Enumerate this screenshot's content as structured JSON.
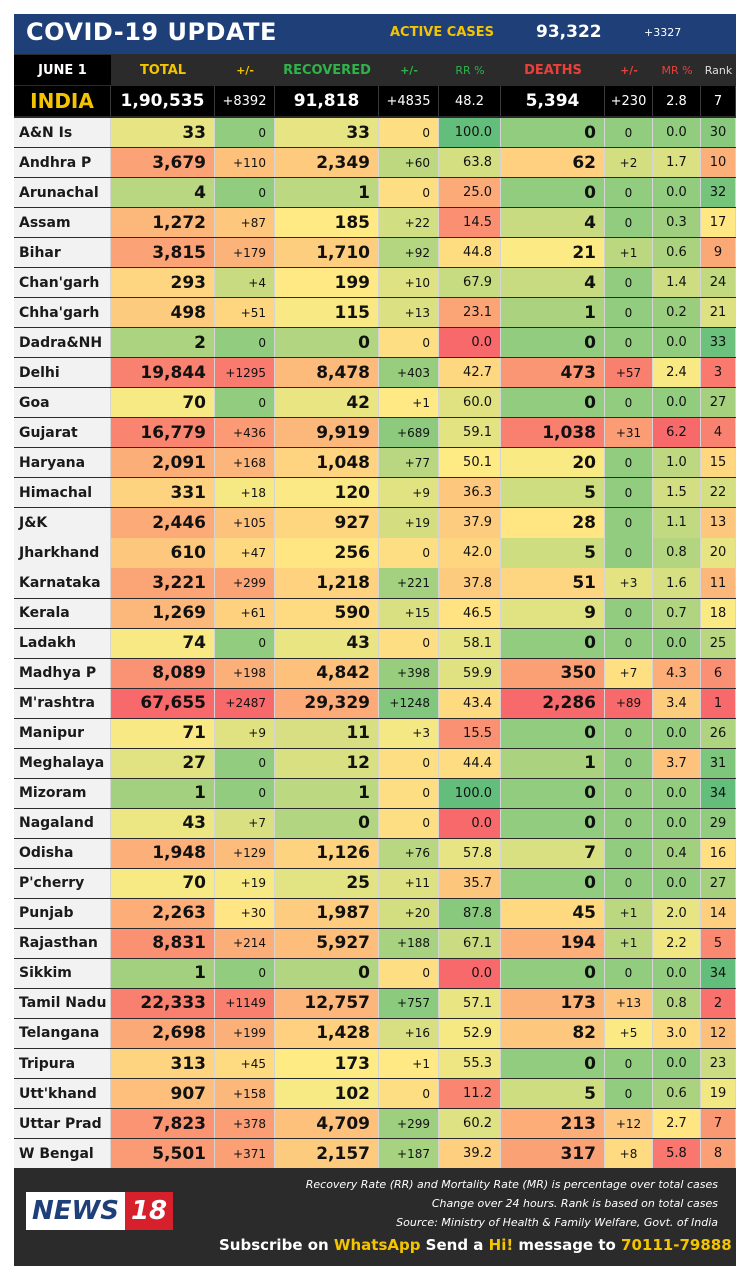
{
  "header": {
    "title": "COVID-19 UPDATE",
    "active_label": "ACTIVE CASES",
    "active_value": "93,322",
    "active_delta": "+3327"
  },
  "columns": [
    "JUNE 1",
    "TOTAL",
    "+/-",
    "RECOVERED",
    "+/-",
    "RR %",
    "DEATHS",
    "+/-",
    "MR %",
    "Rank"
  ],
  "india": [
    "INDIA",
    "1,90,535",
    "+8392",
    "91,818",
    "+4835",
    "48.2",
    "5,394",
    "+230",
    "2.8",
    "7"
  ],
  "chart_data": {
    "type": "table",
    "title": "COVID-19 UPDATE",
    "columns": [
      "JUNE 1",
      "TOTAL",
      "+/-",
      "RECOVERED",
      "+/-",
      "RR %",
      "DEATHS",
      "+/-",
      "MR %",
      "Rank"
    ],
    "rows": [
      [
        "A&N Is",
        "33",
        "0",
        "33",
        "0",
        "100.0",
        "0",
        "0",
        "0.0",
        "30"
      ],
      [
        "Andhra P",
        "3,679",
        "+110",
        "2,349",
        "+60",
        "63.8",
        "62",
        "+2",
        "1.7",
        "10"
      ],
      [
        "Arunachal",
        "4",
        "0",
        "1",
        "0",
        "25.0",
        "0",
        "0",
        "0.0",
        "32"
      ],
      [
        "Assam",
        "1,272",
        "+87",
        "185",
        "+22",
        "14.5",
        "4",
        "0",
        "0.3",
        "17"
      ],
      [
        "Bihar",
        "3,815",
        "+179",
        "1,710",
        "+92",
        "44.8",
        "21",
        "+1",
        "0.6",
        "9"
      ],
      [
        "Chan'garh",
        "293",
        "+4",
        "199",
        "+10",
        "67.9",
        "4",
        "0",
        "1.4",
        "24"
      ],
      [
        "Chha'garh",
        "498",
        "+51",
        "115",
        "+13",
        "23.1",
        "1",
        "0",
        "0.2",
        "21"
      ],
      [
        "Dadra&NH",
        "2",
        "0",
        "0",
        "0",
        "0.0",
        "0",
        "0",
        "0.0",
        "33"
      ],
      [
        "Delhi",
        "19,844",
        "+1295",
        "8,478",
        "+403",
        "42.7",
        "473",
        "+57",
        "2.4",
        "3"
      ],
      [
        "Goa",
        "70",
        "0",
        "42",
        "+1",
        "60.0",
        "0",
        "0",
        "0.0",
        "27"
      ],
      [
        "Gujarat",
        "16,779",
        "+436",
        "9,919",
        "+689",
        "59.1",
        "1,038",
        "+31",
        "6.2",
        "4"
      ],
      [
        "Haryana",
        "2,091",
        "+168",
        "1,048",
        "+77",
        "50.1",
        "20",
        "0",
        "1.0",
        "15"
      ],
      [
        "Himachal",
        "331",
        "+18",
        "120",
        "+9",
        "36.3",
        "5",
        "0",
        "1.5",
        "22"
      ],
      [
        "J&K",
        "2,446",
        "+105",
        "927",
        "+19",
        "37.9",
        "28",
        "0",
        "1.1",
        "13"
      ],
      [
        "Jharkhand",
        "610",
        "+47",
        "256",
        "0",
        "42.0",
        "5",
        "0",
        "0.8",
        "20"
      ],
      [
        "Karnataka",
        "3,221",
        "+299",
        "1,218",
        "+221",
        "37.8",
        "51",
        "+3",
        "1.6",
        "11"
      ],
      [
        "Kerala",
        "1,269",
        "+61",
        "590",
        "+15",
        "46.5",
        "9",
        "0",
        "0.7",
        "18"
      ],
      [
        "Ladakh",
        "74",
        "0",
        "43",
        "0",
        "58.1",
        "0",
        "0",
        "0.0",
        "25"
      ],
      [
        "Madhya P",
        "8,089",
        "+198",
        "4,842",
        "+398",
        "59.9",
        "350",
        "+7",
        "4.3",
        "6"
      ],
      [
        "M'rashtra",
        "67,655",
        "+2487",
        "29,329",
        "+1248",
        "43.4",
        "2,286",
        "+89",
        "3.4",
        "1"
      ],
      [
        "Manipur",
        "71",
        "+9",
        "11",
        "+3",
        "15.5",
        "0",
        "0",
        "0.0",
        "26"
      ],
      [
        "Meghalaya",
        "27",
        "0",
        "12",
        "0",
        "44.4",
        "1",
        "0",
        "3.7",
        "31"
      ],
      [
        "Mizoram",
        "1",
        "0",
        "1",
        "0",
        "100.0",
        "0",
        "0",
        "0.0",
        "34"
      ],
      [
        "Nagaland",
        "43",
        "+7",
        "0",
        "0",
        "0.0",
        "0",
        "0",
        "0.0",
        "29"
      ],
      [
        "Odisha",
        "1,948",
        "+129",
        "1,126",
        "+76",
        "57.8",
        "7",
        "0",
        "0.4",
        "16"
      ],
      [
        "P'cherry",
        "70",
        "+19",
        "25",
        "+11",
        "35.7",
        "0",
        "0",
        "0.0",
        "27"
      ],
      [
        "Punjab",
        "2,263",
        "+30",
        "1,987",
        "+20",
        "87.8",
        "45",
        "+1",
        "2.0",
        "14"
      ],
      [
        "Rajasthan",
        "8,831",
        "+214",
        "5,927",
        "+188",
        "67.1",
        "194",
        "+1",
        "2.2",
        "5"
      ],
      [
        "Sikkim",
        "1",
        "0",
        "0",
        "0",
        "0.0",
        "0",
        "0",
        "0.0",
        "34"
      ],
      [
        "Tamil Nadu",
        "22,333",
        "+1149",
        "12,757",
        "+757",
        "57.1",
        "173",
        "+13",
        "0.8",
        "2"
      ],
      [
        "Telangana",
        "2,698",
        "+199",
        "1,428",
        "+16",
        "52.9",
        "82",
        "+5",
        "3.0",
        "12"
      ],
      [
        "Tripura",
        "313",
        "+45",
        "173",
        "+1",
        "55.3",
        "0",
        "0",
        "0.0",
        "23"
      ],
      [
        "Utt'khand",
        "907",
        "+158",
        "102",
        "0",
        "11.2",
        "5",
        "0",
        "0.6",
        "19"
      ],
      [
        "Uttar Prad",
        "7,823",
        "+378",
        "4,709",
        "+299",
        "60.2",
        "213",
        "+12",
        "2.7",
        "7"
      ],
      [
        "W Bengal",
        "5,501",
        "+371",
        "2,157",
        "+187",
        "39.2",
        "317",
        "+8",
        "5.8",
        "8"
      ]
    ]
  },
  "footer": {
    "logo_news": "NEWS",
    "logo_num": "18",
    "note1": "Recovery Rate (RR) and Mortality Rate (MR) is percentage over total cases",
    "note2": "Change over 24 hours. Rank is based on total cases",
    "note3": "Source: Ministry of Health & Family Welfare, Govt. of India",
    "sub1": "Subscribe on ",
    "sub2": "WhatsApp",
    "sub3": " Send a ",
    "sub4": "Hi!",
    "sub5": " message to ",
    "sub6": "70111-79888"
  },
  "colors": {
    "header_blue": "#1f3f78",
    "accent_yellow": "#f5c400",
    "recovered_green": "#2fb34a",
    "deaths_red": "#e8403a",
    "good": "#5cbf6a",
    "bad": "#f26b6b"
  }
}
